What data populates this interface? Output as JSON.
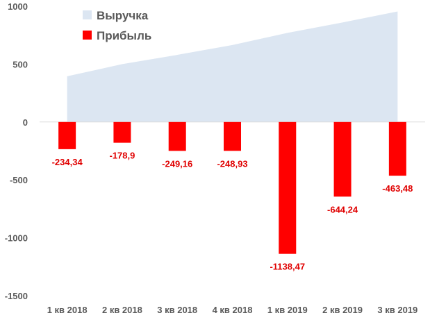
{
  "chart_data": {
    "type": "bar",
    "categories": [
      "1 кв 2018",
      "2 кв 2018",
      "3 кв 2018",
      "4 кв 2018",
      "1 кв 2019",
      "2 кв 2019",
      "3 кв 2019"
    ],
    "series": [
      {
        "name": "Выручка",
        "type": "area",
        "color": "#dce6f2",
        "values": [
          395,
          500,
          580,
          665,
          770,
          860,
          955
        ]
      },
      {
        "name": "Прибыль",
        "type": "bar",
        "color": "#ff0000",
        "values": [
          -234.34,
          -178.9,
          -249.16,
          -248.93,
          -1138.47,
          -644.24,
          -463.48
        ],
        "labels": [
          "-234,34",
          "-178,9",
          "-249,16",
          "-248,93",
          "-1138,47",
          "-644,24",
          "-463,48"
        ]
      }
    ],
    "ylim": [
      -1500,
      1000
    ],
    "yticks": [
      1000,
      500,
      0,
      -500,
      -1000,
      -1500
    ],
    "grid": false,
    "legend_position": "top-left",
    "label_color": "#e00000",
    "axis_text_color": "#595959"
  }
}
